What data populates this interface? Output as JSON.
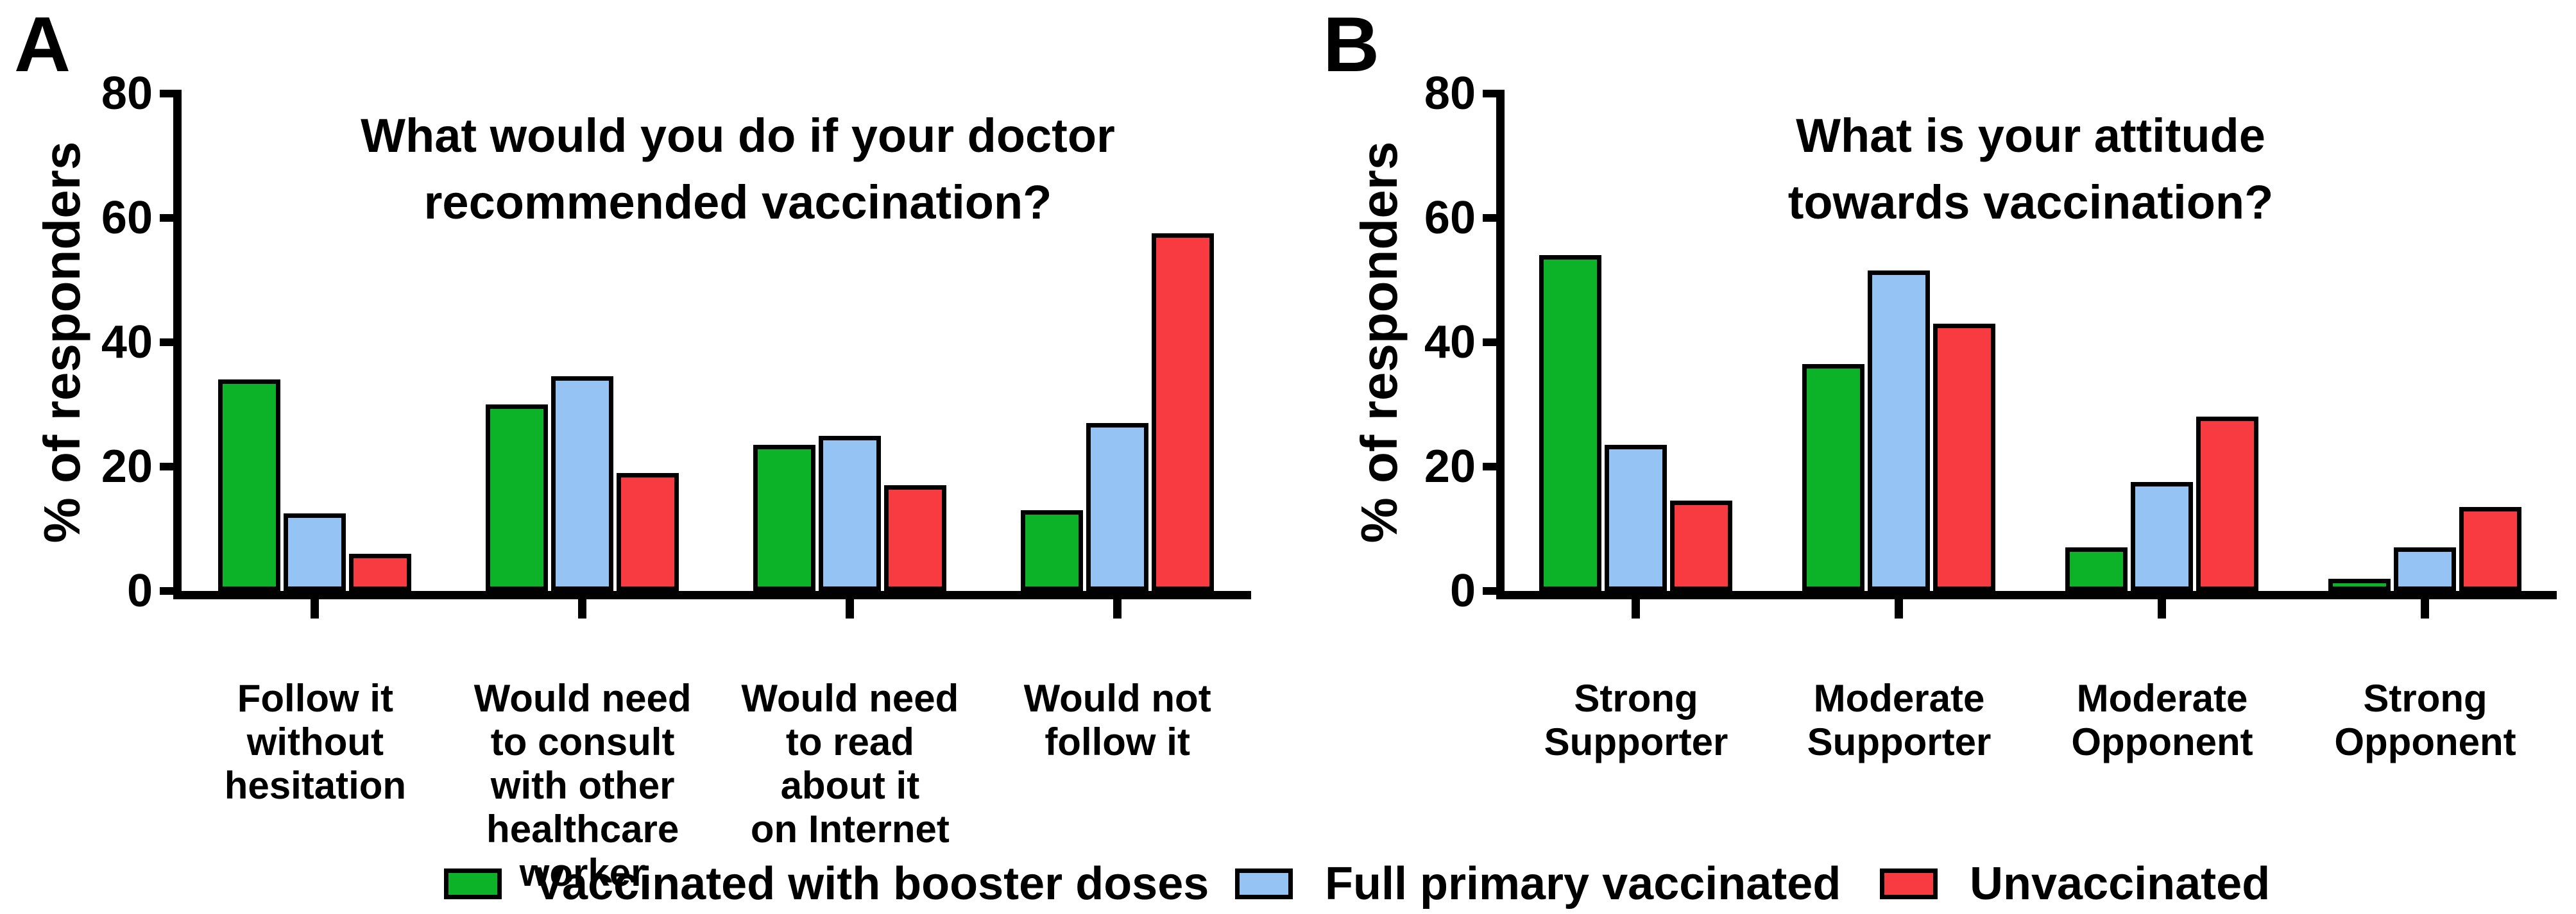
{
  "figure_background": "#ffffff",
  "chart_data": [
    {
      "type": "bar",
      "panel_letter": "A",
      "title": "What would you do if your doctor recommended vaccination?",
      "title_lines": [
        "What would you do if your doctor",
        "recommended vaccination?"
      ],
      "ylabel": "% of responders",
      "ylim": [
        0,
        80
      ],
      "yticks": [
        0,
        20,
        40,
        60,
        80
      ],
      "grid": false,
      "legend_position": "bottom",
      "categories": [
        "Follow it without hesitation",
        "Would need to consult with other healthcare worker",
        "Would need to read about it on Internet",
        "Would not follow it"
      ],
      "category_lines": [
        [
          "Follow it",
          "without",
          "hesitation"
        ],
        [
          "Would need",
          "to consult",
          "with other",
          "healthcare",
          "worker"
        ],
        [
          "Would need",
          "to read",
          "about it",
          "on Internet"
        ],
        [
          "Would not",
          "follow it"
        ]
      ],
      "series": [
        {
          "name": "Vaccinated with booster doses",
          "color": "#0CB227",
          "values": [
            34,
            30,
            23.5,
            13
          ]
        },
        {
          "name": "Full primary vaccinated",
          "color": "#95C4F4",
          "values": [
            12.5,
            34.5,
            25,
            27
          ]
        },
        {
          "name": "Unvaccinated",
          "color": "#F83B40",
          "values": [
            6,
            19,
            17,
            57.5
          ]
        }
      ]
    },
    {
      "type": "bar",
      "panel_letter": "B",
      "title": "What is your attitude towards vaccination?",
      "title_lines": [
        "What is your attitude",
        "towards vaccination?"
      ],
      "ylabel": "% of responders",
      "ylim": [
        0,
        80
      ],
      "yticks": [
        0,
        20,
        40,
        60,
        80
      ],
      "grid": false,
      "legend_position": "bottom",
      "categories": [
        "Strong Supporter",
        "Moderate Supporter",
        "Moderate Opponent",
        "Strong Opponent"
      ],
      "category_lines": [
        [
          "Strong",
          "Supporter"
        ],
        [
          "Moderate",
          "Supporter"
        ],
        [
          "Moderate",
          "Opponent"
        ],
        [
          "Strong",
          "Opponent"
        ]
      ],
      "series": [
        {
          "name": "Vaccinated with booster doses",
          "color": "#0CB227",
          "values": [
            54,
            36.5,
            7,
            2
          ]
        },
        {
          "name": "Full primary vaccinated",
          "color": "#95C4F4",
          "values": [
            23.5,
            51.5,
            17.5,
            7
          ]
        },
        {
          "name": "Unvaccinated",
          "color": "#F83B40",
          "values": [
            14.5,
            43,
            28,
            13.5
          ]
        }
      ]
    }
  ],
  "legend": {
    "items": [
      {
        "label": "Vaccinated with booster doses",
        "color": "#0CB227"
      },
      {
        "label": "Full primary vaccinated",
        "color": "#95C4F4"
      },
      {
        "label": "Unvaccinated",
        "color": "#F83B40"
      }
    ]
  }
}
